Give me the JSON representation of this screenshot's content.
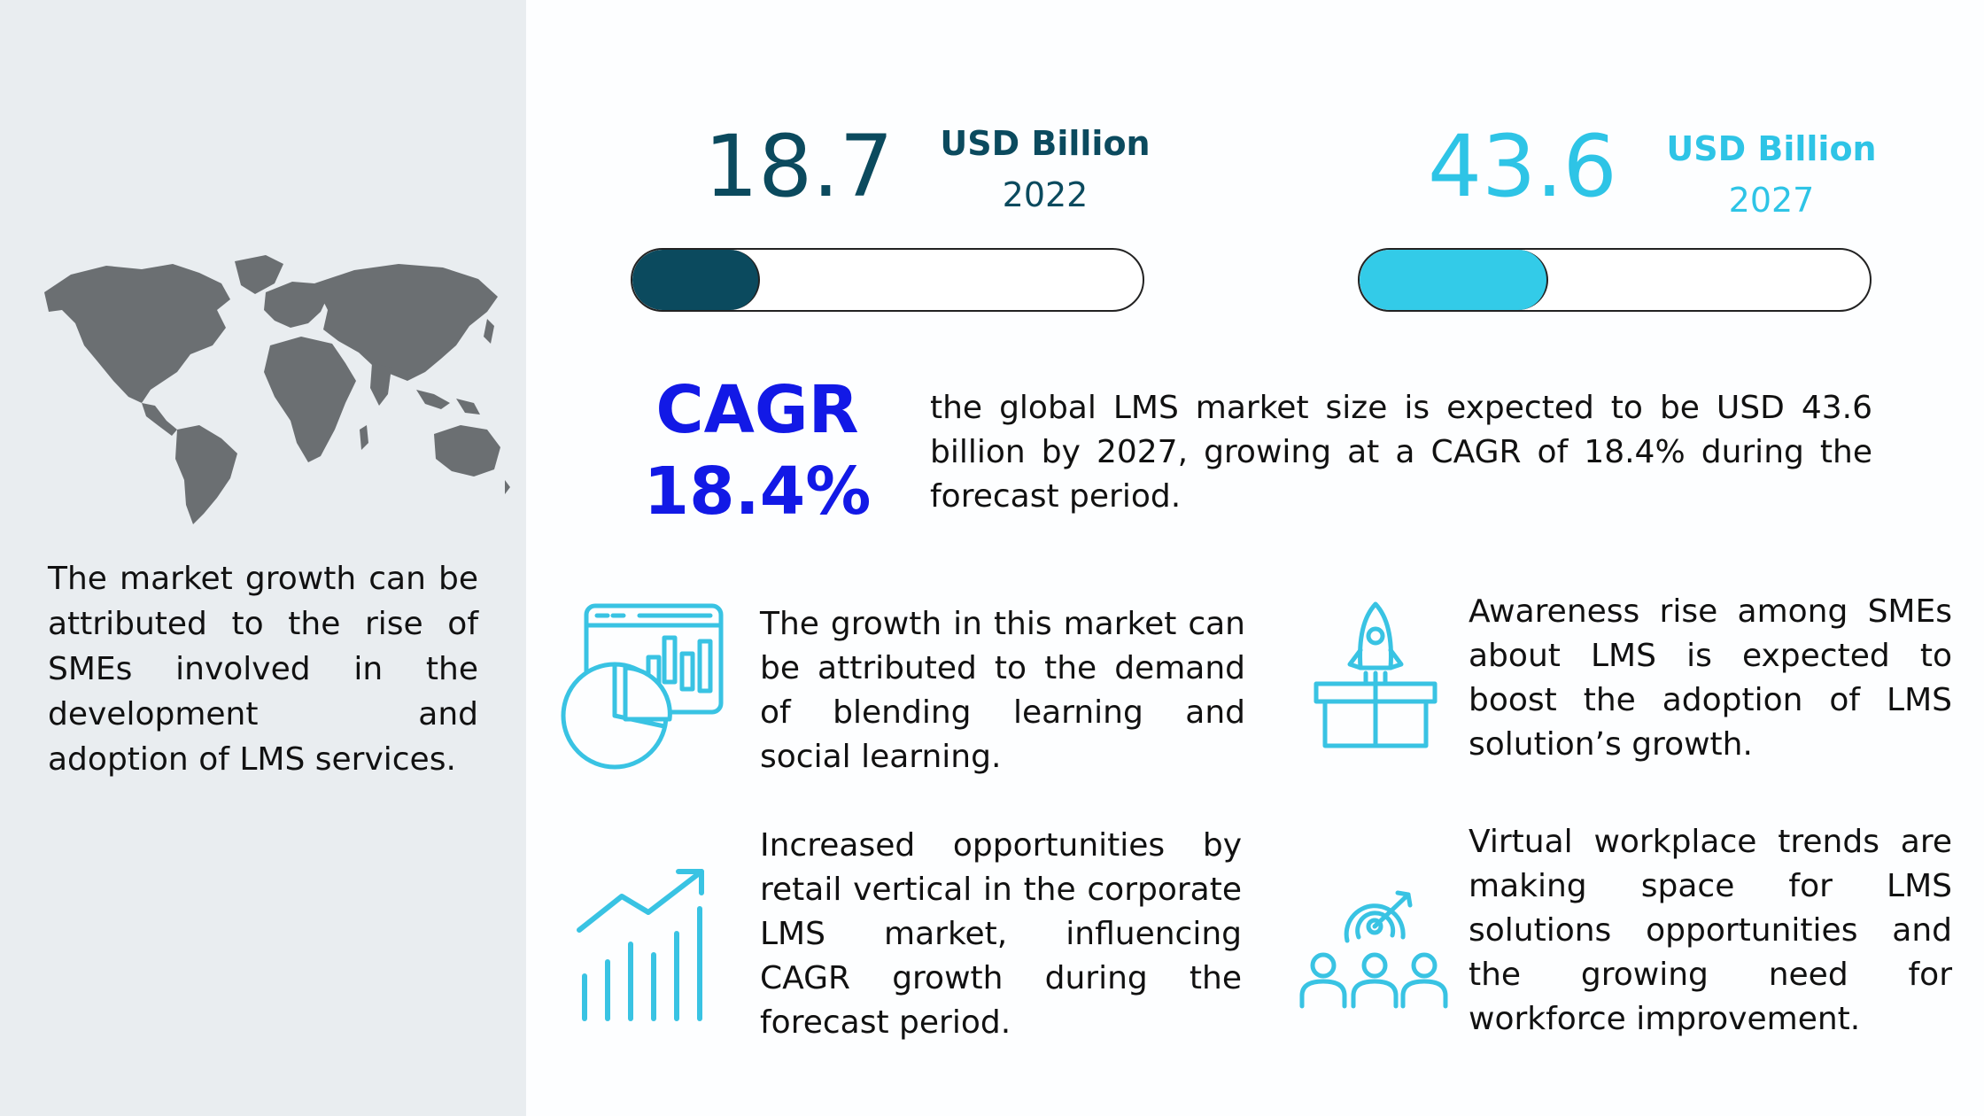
{
  "left_panel": {
    "map_icon": "world-map-icon",
    "description": "The market growth can be attributed to the rise of SMEs involved in the development and adoption of LMS services."
  },
  "stats": [
    {
      "value": "18.7",
      "unit": "USD Billion",
      "year": "2022",
      "color": "#0b4a5e",
      "bar_fill_fraction": 0.25
    },
    {
      "value": "43.6",
      "unit": "USD Billion",
      "year": "2027",
      "color": "#2ec4e6",
      "bar_fill_fraction": 0.37
    }
  ],
  "cagr": {
    "label": "CAGR",
    "value": "18.4%",
    "color": "#1219e6",
    "summary": "the global LMS market size is expected to be USD 43.6 billion by 2027, growing at a CAGR of 18.4% during the forecast period."
  },
  "cards": [
    {
      "icon": "analytics-dashboard-icon",
      "text": "The growth in this market can be attributed to the demand of blending learning and social learning."
    },
    {
      "icon": "rocket-launch-box-icon",
      "text": "Awareness rise among SMEs about LMS is expected to boost the adoption of LMS solution’s growth."
    },
    {
      "icon": "growth-bar-chart-icon",
      "text": "Increased opportunities by retail vertical in the corporate LMS market, influencing CAGR growth during the forecast period."
    },
    {
      "icon": "team-target-icon",
      "text": "Virtual workplace trends are making space for LMS solutions opportunities and the growing need for workforce improvement."
    }
  ],
  "accent_color": "#39c3e3"
}
